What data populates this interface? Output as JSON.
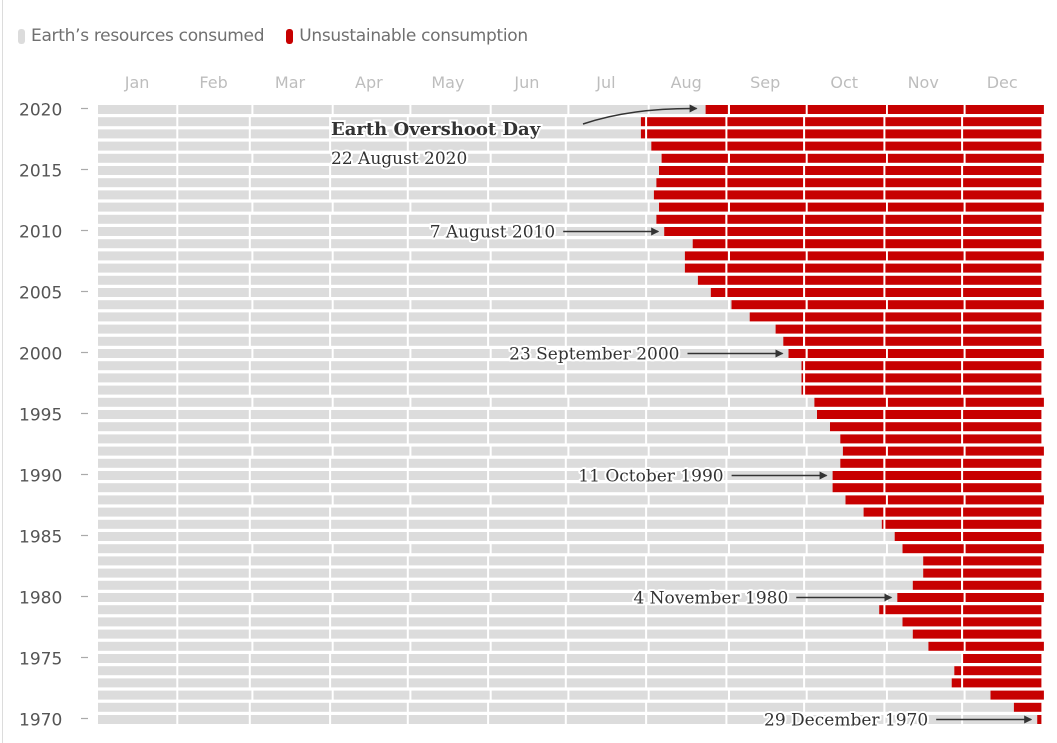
{
  "legend": {
    "items": [
      {
        "label": "Earth’s resources consumed",
        "color": "#dcdcdc"
      },
      {
        "label": "Unsustainable consumption",
        "color": "#c70000"
      }
    ]
  },
  "chart_data": {
    "type": "bar",
    "orientation": "horizontal-stacked",
    "title": "",
    "xlabel": "",
    "ylabel": "",
    "x_tick_labels": [
      "Jan",
      "Feb",
      "Mar",
      "Apr",
      "May",
      "Jun",
      "Jul",
      "Aug",
      "Sep",
      "Oct",
      "Nov",
      "Dec"
    ],
    "y_tick_labels": [
      "2020",
      "2015",
      "2010",
      "2005",
      "2000",
      "1995",
      "1990",
      "1985",
      "1980",
      "1975",
      "1970"
    ],
    "y_ticks": [
      2020,
      2015,
      2010,
      2005,
      2000,
      1995,
      1990,
      1985,
      1980,
      1975,
      1970
    ],
    "xlim_days": [
      0,
      366
    ],
    "series_names": [
      "Earth’s resources consumed",
      "Unsustainable consumption"
    ],
    "colors": {
      "consumed": "#dcdcdc",
      "overshoot": "#c70000",
      "axis_text": "#555555",
      "month_text": "#bdbdbd"
    },
    "years": [
      1970,
      1971,
      1972,
      1973,
      1974,
      1975,
      1976,
      1977,
      1978,
      1979,
      1980,
      1981,
      1982,
      1983,
      1984,
      1985,
      1986,
      1987,
      1988,
      1989,
      1990,
      1991,
      1992,
      1993,
      1994,
      1995,
      1996,
      1997,
      1998,
      1999,
      2000,
      2001,
      2002,
      2003,
      2004,
      2005,
      2006,
      2007,
      2008,
      2009,
      2010,
      2011,
      2012,
      2013,
      2014,
      2015,
      2016,
      2017,
      2018,
      2019,
      2020
    ],
    "overshoot_day_of_year": [
      363,
      354,
      345,
      330,
      331,
      334,
      321,
      315,
      311,
      302,
      309,
      315,
      319,
      319,
      311,
      308,
      303,
      296,
      289,
      284,
      284,
      287,
      288,
      287,
      283,
      278,
      277,
      272,
      272,
      272,
      267,
      265,
      262,
      252,
      245,
      237,
      232,
      227,
      227,
      230,
      219,
      216,
      217,
      215,
      216,
      217,
      218,
      214,
      210,
      210,
      235
    ],
    "annotations": [
      {
        "year": 2020,
        "title": "Earth Overshoot Day",
        "label": "22 August 2020"
      },
      {
        "year": 2010,
        "label": "7 August 2010"
      },
      {
        "year": 2000,
        "label": "23 September 2000"
      },
      {
        "year": 1990,
        "label": "11 October 1990"
      },
      {
        "year": 1980,
        "label": "4 November 1980"
      },
      {
        "year": 1970,
        "label": "29 December 1970"
      }
    ]
  }
}
